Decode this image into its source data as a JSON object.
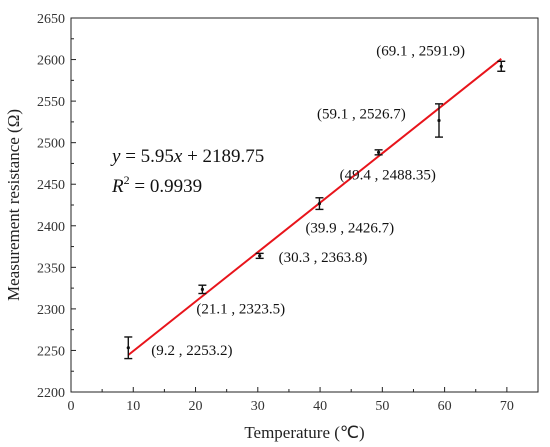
{
  "chart_data": {
    "type": "scatter",
    "xlabel": "Temperature (℃)",
    "ylabel": "Measurement resistance (Ω)",
    "xlim": [
      0,
      75
    ],
    "ylim": [
      2200,
      2650
    ],
    "x_ticks": [
      0,
      10,
      20,
      30,
      40,
      50,
      60,
      70
    ],
    "y_ticks": [
      2200,
      2250,
      2300,
      2350,
      2400,
      2450,
      2500,
      2550,
      2600,
      2650
    ],
    "x_tick_labels": [
      "0",
      "10",
      "20",
      "30",
      "40",
      "50",
      "60",
      "70"
    ],
    "y_tick_labels": [
      "2200",
      "2250",
      "2300",
      "2350",
      "2400",
      "2450",
      "2500",
      "2550",
      "2600",
      "2650"
    ],
    "grid": false,
    "points": [
      {
        "x": 9.2,
        "y": 2253.2,
        "err": 13,
        "label": "(9.2 , 2253.2)"
      },
      {
        "x": 21.1,
        "y": 2323.5,
        "err": 5,
        "label": "(21.1 , 2323.5)"
      },
      {
        "x": 30.3,
        "y": 2363.8,
        "err": 3,
        "label": "(30.3 , 2363.8)"
      },
      {
        "x": 39.9,
        "y": 2426.7,
        "err": 7,
        "label": "(39.9 , 2426.7)"
      },
      {
        "x": 49.4,
        "y": 2488.35,
        "err": 3,
        "label": "(49.4 , 2488.35)"
      },
      {
        "x": 59.1,
        "y": 2526.7,
        "err": 20,
        "label": "(59.1 , 2526.7)"
      },
      {
        "x": 69.1,
        "y": 2591.9,
        "err": 6,
        "label": "(69.1 , 2591.9)"
      }
    ],
    "fit": {
      "slope": 5.95,
      "intercept": 2189.75,
      "x_range": [
        9.2,
        69.1
      ],
      "color": "#e8141b",
      "equation": {
        "lhs": "y",
        "rhs_prefix": " = 5.95",
        "var": "x",
        "rhs_suffix": " + 2189.75"
      },
      "r2": {
        "label": "R",
        "sup": "2",
        "value": " = 0.9939"
      }
    },
    "marker_color": "#111111"
  }
}
